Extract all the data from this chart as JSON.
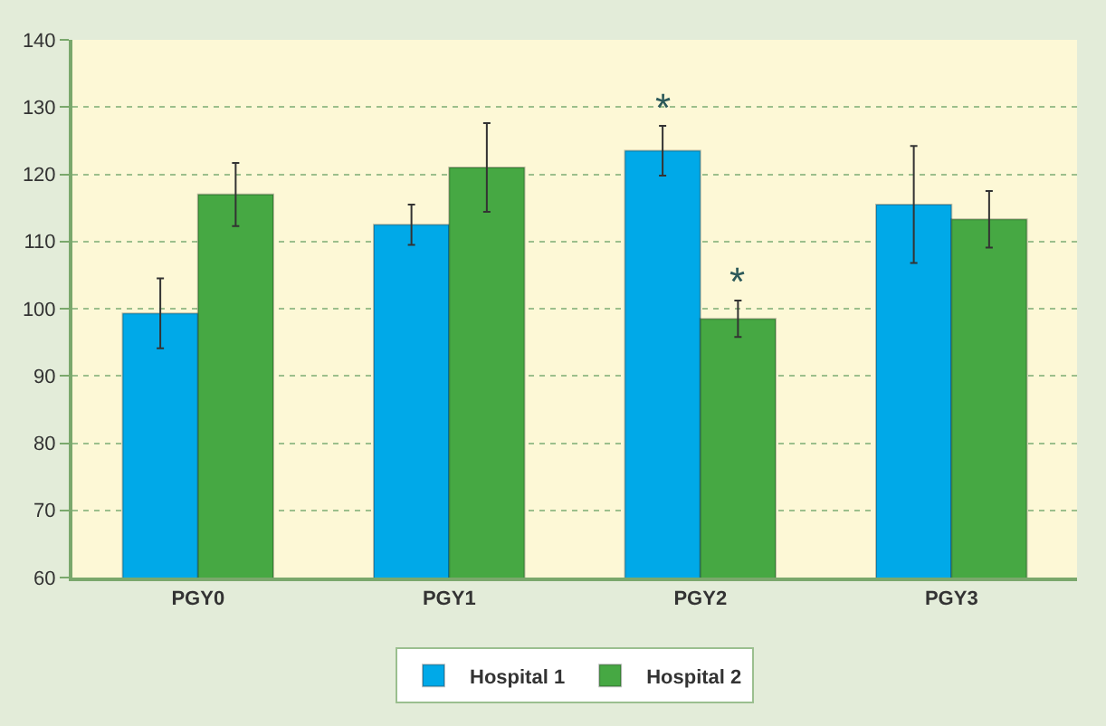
{
  "chart_data": {
    "type": "bar",
    "categories": [
      "PGY0",
      "PGY1",
      "PGY2",
      "PGY3"
    ],
    "series": [
      {
        "name": "Hospital 1",
        "color": "#00a9e8",
        "values": [
          99.3,
          112.5,
          123.5,
          115.5
        ],
        "errors": [
          5.2,
          3,
          3.7,
          8.7
        ]
      },
      {
        "name": "Hospital 2",
        "color": "#46a843",
        "values": [
          117,
          121,
          98.5,
          113.3
        ],
        "errors": [
          4.7,
          6.6,
          2.7,
          4.2
        ]
      }
    ],
    "annotations": [
      {
        "text": "*",
        "x": "PGY2",
        "y": 123.5
      },
      {
        "text": "*",
        "x": "PGY2",
        "y": 98.5
      }
    ],
    "ylim": [
      60,
      140
    ],
    "yticks": [
      60,
      70,
      80,
      90,
      100,
      110,
      120,
      130,
      140
    ],
    "grid": "y",
    "legend": "bottom"
  }
}
